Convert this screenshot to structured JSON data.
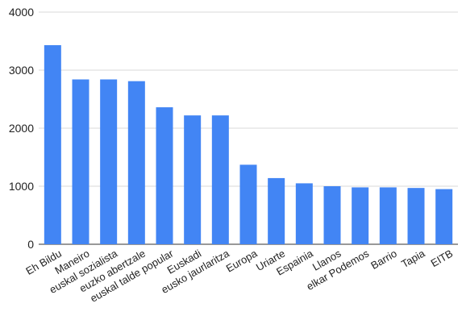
{
  "chart_data": {
    "type": "bar",
    "title": "",
    "xlabel": "",
    "ylabel": "",
    "ylim": [
      0,
      4000
    ],
    "yticks": [
      0,
      1000,
      2000,
      3000,
      4000
    ],
    "grid": true,
    "bar_color": "#4285f4",
    "categories": [
      "Eh Bildu",
      "Maneiro",
      "euskal sozialista",
      "euzko abertzale",
      "euskal talde popular",
      "Euskadi",
      "eusko jaurlaritza",
      "Europa",
      "Uriarte",
      "Espainia",
      "Llanos",
      "elkar Podemos",
      "Barrio",
      "Tapia",
      "EITB"
    ],
    "values": [
      3430,
      2840,
      2840,
      2810,
      2360,
      2220,
      2220,
      1370,
      1140,
      1050,
      1000,
      980,
      980,
      970,
      950
    ]
  }
}
